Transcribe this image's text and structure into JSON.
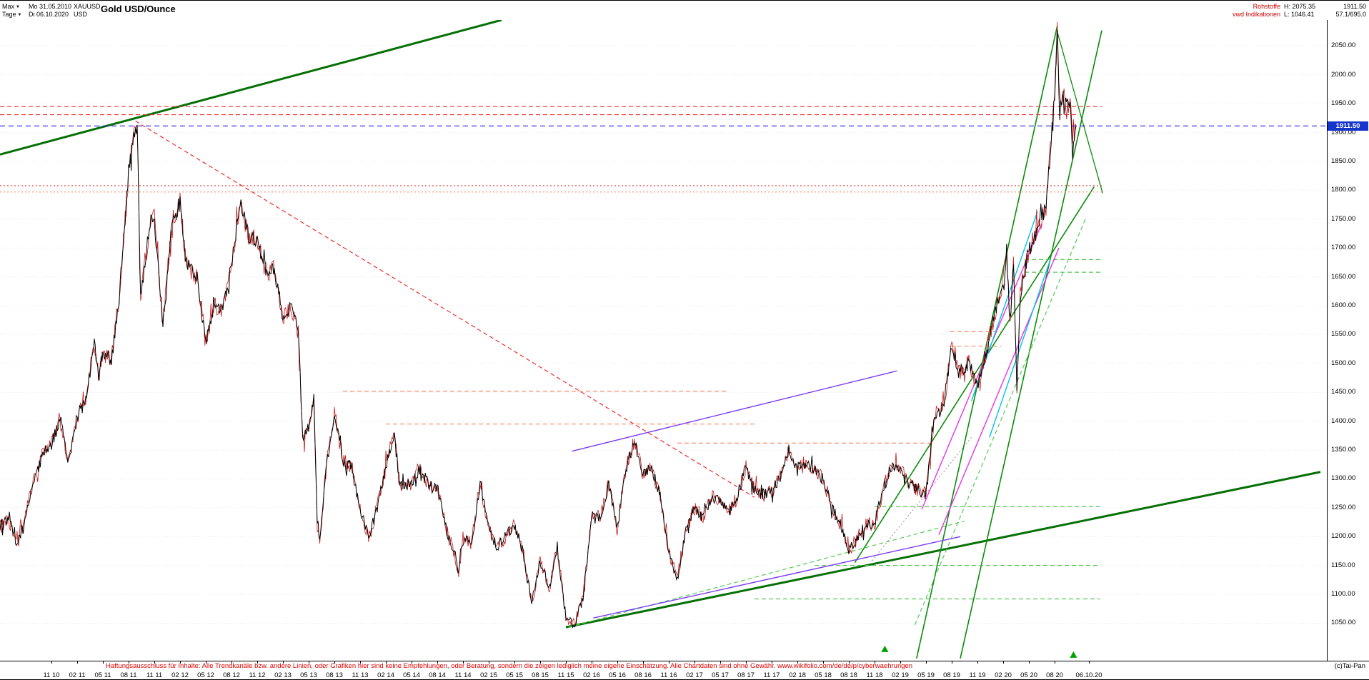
{
  "header": {
    "range_selector": "Max",
    "start_date": "Mo 31.05.2010",
    "symbol": "XAUUSD",
    "period_selector": "Tage",
    "end_date": "Di 06.10.2020",
    "currency": "USD",
    "title": "Gold USD/Ounce",
    "category": "Rohstoffe",
    "high_label": "H: 2075.35",
    "last_price": "1911.50",
    "provider": "vwd Indikationen",
    "low_label": "L: 1046.41",
    "range_info": "57.1/695.0"
  },
  "footer": {
    "disclaimer": "Haftungsausschluss für Inhalte: Alle Trendkanäle bzw. andere Linien, oder Grafiken hier sind keine Empfehlungen, oder Beratung, sondern die zeigen lediglich meine eigene Einschätzung. Alle Chartdaten sind ohne Gewähr. www.wikifolio.com/de/de/p/cyberwaehrungen",
    "copyright": "(c)Tai-Pan"
  },
  "colors": {
    "dgreen": "#067006",
    "green": "#0a8c0a",
    "lgreen": "#57c957",
    "red": "#f03030",
    "salmon": "#fa8a6a",
    "magenta": "#e833e8",
    "purple": "#7a3df0",
    "cyan": "#00c4e8",
    "blue": "#2424e8",
    "gray": "#909090",
    "grid": "#ebebeb",
    "candle": "#000000",
    "candle_accent": "#c81616",
    "badge_bg": "#1535cc",
    "marker_green": "#00a000",
    "disclaimer_red": "#e00000"
  },
  "chart_data": {
    "type": "line",
    "title": "Gold USD/Ounce",
    "instrument": "XAUUSD",
    "x_unit": "months since 2010-05 (daily candles)",
    "date_start": "31.05.2010",
    "date_end": "06.10.2020",
    "current_price": 1911.5,
    "high": 2075.35,
    "low": 1046.41,
    "ylim": [
      985,
      2095
    ],
    "y_ticks": [
      1050,
      1100,
      1150,
      1200,
      1250,
      1300,
      1350,
      1400,
      1450,
      1500,
      1550,
      1600,
      1650,
      1700,
      1750,
      1800,
      1850,
      1900,
      1950,
      2000,
      2050
    ],
    "grid": true,
    "legend": "none",
    "series": [
      {
        "name": "XAUUSD Gold USD/Ounce",
        "points": [
          [
            0,
            1215
          ],
          [
            1,
            1232
          ],
          [
            2,
            1185
          ],
          [
            3,
            1238
          ],
          [
            4,
            1300
          ],
          [
            5,
            1342
          ],
          [
            6,
            1360
          ],
          [
            7,
            1405
          ],
          [
            8,
            1330
          ],
          [
            9,
            1410
          ],
          [
            10,
            1432
          ],
          [
            11,
            1540
          ],
          [
            11.5,
            1478
          ],
          [
            12,
            1520
          ],
          [
            13,
            1505
          ],
          [
            14,
            1628
          ],
          [
            15,
            1830
          ],
          [
            15.7,
            1898
          ],
          [
            16,
            1918
          ],
          [
            16.4,
            1620
          ],
          [
            17,
            1682
          ],
          [
            17.5,
            1745
          ],
          [
            18,
            1752
          ],
          [
            19,
            1565
          ],
          [
            20,
            1740
          ],
          [
            21,
            1780
          ],
          [
            21.5,
            1690
          ],
          [
            22,
            1668
          ],
          [
            23,
            1650
          ],
          [
            24,
            1535
          ],
          [
            25,
            1600
          ],
          [
            26,
            1592
          ],
          [
            27,
            1672
          ],
          [
            28,
            1778
          ],
          [
            29,
            1722
          ],
          [
            30,
            1715
          ],
          [
            31,
            1660
          ],
          [
            32,
            1662
          ],
          [
            33,
            1580
          ],
          [
            34,
            1598
          ],
          [
            34.8,
            1555
          ],
          [
            35.3,
            1365
          ],
          [
            36,
            1390
          ],
          [
            36.6,
            1440
          ],
          [
            37,
            1232
          ],
          [
            37.3,
            1190
          ],
          [
            38,
            1312
          ],
          [
            39,
            1418
          ],
          [
            40,
            1330
          ],
          [
            41,
            1322
          ],
          [
            42,
            1248
          ],
          [
            43,
            1195
          ],
          [
            44,
            1252
          ],
          [
            45,
            1320
          ],
          [
            46,
            1382
          ],
          [
            46.6,
            1288
          ],
          [
            47,
            1292
          ],
          [
            48,
            1288
          ],
          [
            49,
            1318
          ],
          [
            50,
            1288
          ],
          [
            51,
            1288
          ],
          [
            52,
            1215
          ],
          [
            53,
            1168
          ],
          [
            53.5,
            1135
          ],
          [
            54,
            1198
          ],
          [
            55,
            1188
          ],
          [
            56,
            1295
          ],
          [
            57,
            1212
          ],
          [
            58,
            1180
          ],
          [
            59,
            1202
          ],
          [
            60,
            1220
          ],
          [
            61,
            1172
          ],
          [
            62,
            1085
          ],
          [
            63,
            1160
          ],
          [
            64,
            1108
          ],
          [
            65,
            1182
          ],
          [
            66,
            1058
          ],
          [
            67,
            1048
          ],
          [
            68,
            1092
          ],
          [
            69,
            1238
          ],
          [
            70,
            1232
          ],
          [
            71,
            1292
          ],
          [
            72,
            1212
          ],
          [
            73,
            1322
          ],
          [
            74,
            1365
          ],
          [
            75,
            1308
          ],
          [
            76,
            1322
          ],
          [
            77,
            1268
          ],
          [
            78,
            1172
          ],
          [
            79,
            1128
          ],
          [
            80,
            1212
          ],
          [
            81,
            1250
          ],
          [
            82,
            1232
          ],
          [
            83,
            1268
          ],
          [
            84,
            1262
          ],
          [
            85,
            1242
          ],
          [
            86,
            1268
          ],
          [
            87,
            1322
          ],
          [
            88,
            1282
          ],
          [
            89,
            1272
          ],
          [
            90,
            1278
          ],
          [
            91,
            1302
          ],
          [
            92,
            1352
          ],
          [
            93,
            1318
          ],
          [
            94,
            1322
          ],
          [
            95,
            1318
          ],
          [
            96,
            1298
          ],
          [
            97,
            1252
          ],
          [
            98,
            1222
          ],
          [
            99,
            1175
          ],
          [
            100,
            1198
          ],
          [
            101,
            1222
          ],
          [
            102,
            1222
          ],
          [
            103,
            1282
          ],
          [
            104,
            1322
          ],
          [
            105,
            1322
          ],
          [
            106,
            1292
          ],
          [
            107,
            1282
          ],
          [
            108,
            1272
          ],
          [
            109,
            1412
          ],
          [
            110,
            1422
          ],
          [
            111,
            1528
          ],
          [
            112,
            1482
          ],
          [
            113,
            1502
          ],
          [
            114,
            1462
          ],
          [
            115,
            1518
          ],
          [
            116,
            1585
          ],
          [
            117,
            1645
          ],
          [
            117.4,
            1688
          ],
          [
            117.8,
            1572
          ],
          [
            118.2,
            1675
          ],
          [
            118.6,
            1455
          ],
          [
            119,
            1622
          ],
          [
            120,
            1695
          ],
          [
            121,
            1732
          ],
          [
            122,
            1772
          ],
          [
            123,
            1962
          ],
          [
            123.3,
            2072
          ],
          [
            123.6,
            1932
          ],
          [
            124,
            1972
          ],
          [
            124.4,
            1938
          ],
          [
            124.8,
            1965
          ],
          [
            125.1,
            1868
          ],
          [
            125.3,
            1902
          ],
          [
            125.5,
            1911.5
          ]
        ]
      }
    ],
    "x_labels": [
      {
        "m": 6,
        "label": "11 10"
      },
      {
        "m": 9,
        "label": "02 11"
      },
      {
        "m": 12,
        "label": "05 11"
      },
      {
        "m": 15,
        "label": "08 11"
      },
      {
        "m": 18,
        "label": "11 11"
      },
      {
        "m": 21,
        "label": "02 12"
      },
      {
        "m": 24,
        "label": "05 12"
      },
      {
        "m": 27,
        "label": "08 12"
      },
      {
        "m": 30,
        "label": "11 12"
      },
      {
        "m": 33,
        "label": "02 13"
      },
      {
        "m": 36,
        "label": "05 13"
      },
      {
        "m": 39,
        "label": "08 13"
      },
      {
        "m": 42,
        "label": "11 13"
      },
      {
        "m": 45,
        "label": "02 14"
      },
      {
        "m": 48,
        "label": "05 14"
      },
      {
        "m": 51,
        "label": "08 14"
      },
      {
        "m": 54,
        "label": "11 14"
      },
      {
        "m": 57,
        "label": "02 15"
      },
      {
        "m": 60,
        "label": "05 15"
      },
      {
        "m": 63,
        "label": "08 15"
      },
      {
        "m": 66,
        "label": "11 15"
      },
      {
        "m": 69,
        "label": "02 16"
      },
      {
        "m": 72,
        "label": "05 16"
      },
      {
        "m": 75,
        "label": "08 16"
      },
      {
        "m": 78,
        "label": "11 16"
      },
      {
        "m": 81,
        "label": "02 17"
      },
      {
        "m": 84,
        "label": "05 17"
      },
      {
        "m": 87,
        "label": "08 17"
      },
      {
        "m": 90,
        "label": "11 17"
      },
      {
        "m": 93,
        "label": "02 18"
      },
      {
        "m": 96,
        "label": "05 18"
      },
      {
        "m": 99,
        "label": "08 18"
      },
      {
        "m": 102,
        "label": "11 18"
      },
      {
        "m": 105,
        "label": "02 19"
      },
      {
        "m": 108,
        "label": "05 19"
      },
      {
        "m": 111,
        "label": "08 19"
      },
      {
        "m": 114,
        "label": "11 19"
      },
      {
        "m": 117,
        "label": "02 20"
      },
      {
        "m": 120,
        "label": "05 20"
      },
      {
        "m": 123,
        "label": "08 20"
      },
      {
        "m": 127,
        "label": "06.10.20"
      }
    ],
    "trend_lines": [
      [
        0,
        1862,
        58.5,
        2095,
        "dgreen",
        3,
        "s"
      ],
      [
        66,
        1043,
        154,
        1312,
        "dgreen",
        3,
        "s"
      ],
      [
        99.7,
        1155,
        127.6,
        1806,
        "green",
        1.6,
        "s"
      ],
      [
        106.9,
        989,
        123.3,
        2084,
        "green",
        1.6,
        "s"
      ],
      [
        112,
        989,
        128.5,
        2077,
        "green",
        1.6,
        "s"
      ],
      [
        123.3,
        2075,
        128.6,
        1795,
        "green",
        1.3,
        "s"
      ],
      [
        66.3,
        1043,
        112.5,
        1227,
        "lgreen",
        1.2,
        "d"
      ],
      [
        106.7,
        1047,
        126.7,
        1754,
        "lgreen",
        1.2,
        "d"
      ],
      [
        95,
        1150,
        128.3,
        1150,
        "lgreen",
        1.2,
        "d"
      ],
      [
        88,
        1092,
        128.3,
        1092,
        "lgreen",
        1.2,
        "d"
      ],
      [
        102,
        1252,
        128.3,
        1252,
        "lgreen",
        1.2,
        "d"
      ],
      [
        119.5,
        1658,
        128.6,
        1658,
        "lgreen",
        1.2,
        "d"
      ],
      [
        119.5,
        1680,
        128.6,
        1680,
        "lgreen",
        1.2,
        "d"
      ],
      [
        15.8,
        1920,
        88,
        1268,
        "red",
        1.2,
        "d"
      ],
      [
        0,
        1945,
        128.5,
        1945,
        "red",
        1.1,
        "d"
      ],
      [
        0,
        1931,
        125.5,
        1931,
        "red",
        1.1,
        "d"
      ],
      [
        0,
        1808,
        128.5,
        1808,
        "red",
        1.1,
        "t"
      ],
      [
        0,
        1797,
        128.5,
        1797,
        "salmon",
        1.1,
        "t"
      ],
      [
        40,
        1452,
        85,
        1452,
        "salmon",
        1.2,
        "d"
      ],
      [
        45,
        1395,
        88,
        1395,
        "salmon",
        1.2,
        "d"
      ],
      [
        79,
        1362,
        109,
        1362,
        "salmon",
        1.2,
        "d"
      ],
      [
        110.8,
        1555,
        116.8,
        1555,
        "salmon",
        1.2,
        "d"
      ],
      [
        110.8,
        1530,
        116.8,
        1530,
        "salmon",
        1.2,
        "d"
      ],
      [
        107.5,
        1247,
        121.5,
        1742,
        "magenta",
        1.4,
        "s"
      ],
      [
        109.5,
        1203,
        123.5,
        1700,
        "magenta",
        1.4,
        "s"
      ],
      [
        66.7,
        1348,
        104.6,
        1487,
        "purple",
        1.4,
        "s"
      ],
      [
        69.2,
        1059,
        112,
        1200,
        "purple",
        1.4,
        "s"
      ],
      [
        113.3,
        1435,
        121,
        1763,
        "cyan",
        1.4,
        "s"
      ],
      [
        115.4,
        1372,
        122.5,
        1680,
        "cyan",
        1.4,
        "s"
      ],
      [
        101.7,
        1158,
        113.3,
        1372,
        "gray",
        1,
        "t"
      ]
    ],
    "markers": [
      [
        103.2,
        1005
      ],
      [
        125.2,
        995
      ]
    ]
  }
}
